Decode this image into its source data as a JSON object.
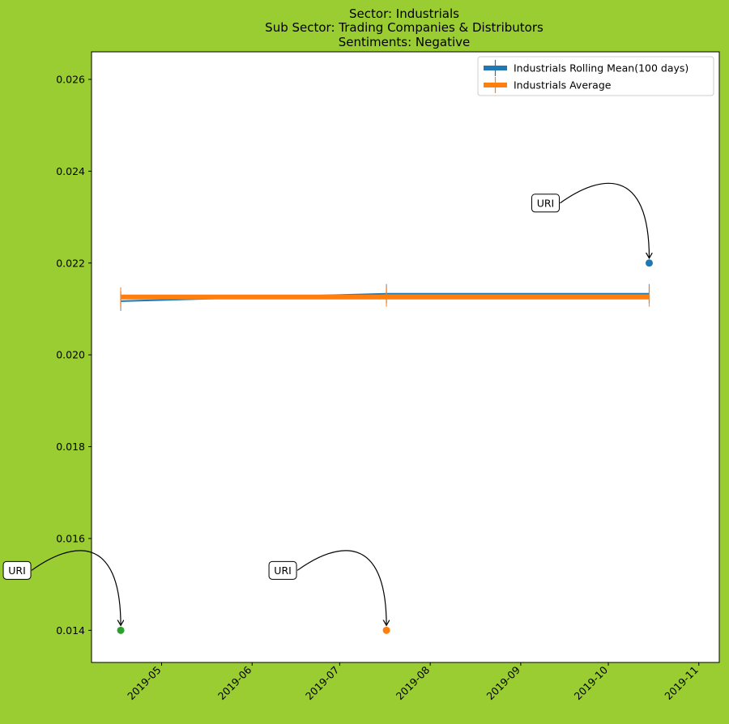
{
  "chart_data": {
    "type": "line",
    "title_lines": [
      "Sector:  Industrials",
      "Sub Sector:  Trading Companies & Distributors",
      "Sentiments:  Negative"
    ],
    "xlabel": "",
    "ylabel": "",
    "x_type": "date",
    "xlim": [
      "2019-04-07",
      "2019-11-08"
    ],
    "ylim": [
      0.0133,
      0.0266
    ],
    "x_ticks": [
      "2019-05",
      "2019-06",
      "2019-07",
      "2019-08",
      "2019-09",
      "2019-10",
      "2019-11"
    ],
    "x_tick_dates": [
      "2019-05-01",
      "2019-06-01",
      "2019-07-01",
      "2019-08-01",
      "2019-09-01",
      "2019-10-01",
      "2019-11-01"
    ],
    "y_ticks": [
      0.014,
      0.016,
      0.018,
      0.02,
      0.022,
      0.024,
      0.026
    ],
    "y_tick_labels": [
      "0.014",
      "0.016",
      "0.018",
      "0.020",
      "0.022",
      "0.024",
      "0.026"
    ],
    "grid": false,
    "legend_position": "top-right",
    "series": [
      {
        "name": "Industrials Rolling Mean(100 days)",
        "color": "#1f77b4",
        "x": [
          "2019-04-17",
          "2019-07-17",
          "2019-10-15"
        ],
        "y": [
          0.02117,
          0.02133,
          0.02133
        ]
      },
      {
        "name": "Industrials Average",
        "color": "#ff7f0e",
        "x": [
          "2019-04-17",
          "2019-07-17",
          "2019-10-15"
        ],
        "y": [
          0.02126,
          0.02126,
          0.02126
        ]
      }
    ],
    "points": [
      {
        "x": "2019-04-17",
        "y": 0.014,
        "color": "#2ca02c",
        "annotation": "URI"
      },
      {
        "x": "2019-07-17",
        "y": 0.014,
        "color": "#ff7f0e",
        "annotation": "URI"
      },
      {
        "x": "2019-10-15",
        "y": 0.022,
        "color": "#1f77b4",
        "annotation": "URI"
      }
    ]
  }
}
